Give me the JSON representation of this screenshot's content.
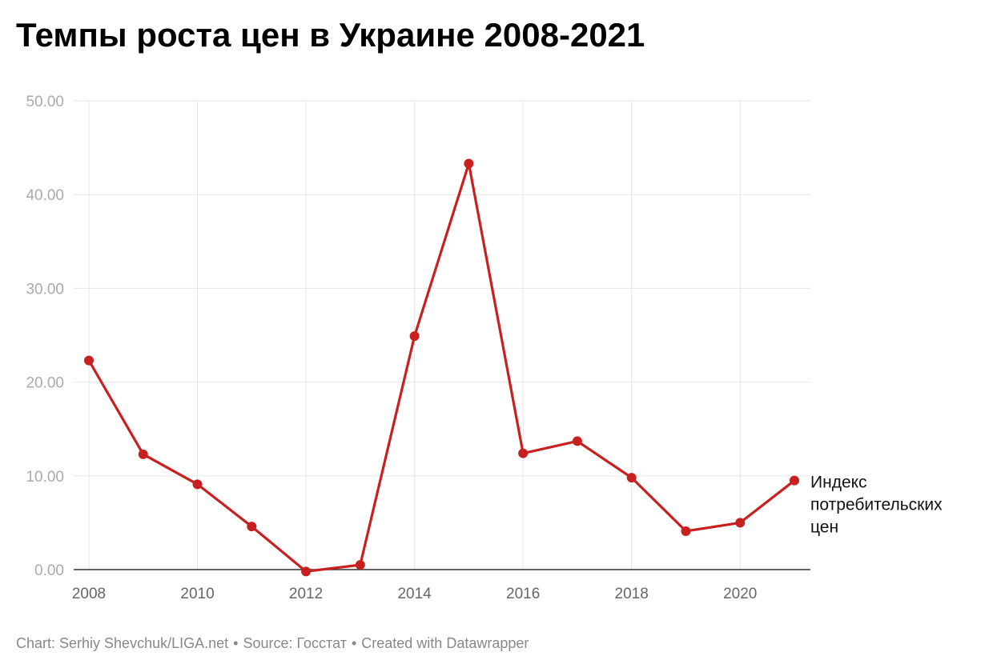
{
  "title": "Темпы роста цен в Украине 2008-2021",
  "footer": {
    "chart_credit": "Chart: Serhiy Shevchuk/LIGA.net",
    "separator": "•",
    "source": "Source: Госстат",
    "created_with": "Created with Datawrapper"
  },
  "colors": {
    "line": "#c8201f",
    "grid": "#e5e5e5",
    "axis": "#333333",
    "y_tick_text": "#aaaaaa",
    "x_tick_text": "#666666"
  },
  "chart_data": {
    "type": "line",
    "title": "Темпы роста цен в Украине 2008-2021",
    "xlabel": "",
    "ylabel": "",
    "x": [
      2008,
      2009,
      2010,
      2011,
      2012,
      2013,
      2014,
      2015,
      2016,
      2017,
      2018,
      2019,
      2020,
      2021
    ],
    "series": [
      {
        "name": "Индекс потребительских цен",
        "name_lines": [
          "Индекс",
          "потребительских",
          "цен"
        ],
        "values": [
          22.3,
          12.3,
          9.1,
          4.6,
          -0.2,
          0.5,
          24.9,
          43.3,
          12.4,
          13.7,
          9.8,
          4.1,
          5.0,
          9.5
        ]
      }
    ],
    "xlim": [
      2008,
      2021
    ],
    "ylim": [
      0,
      50
    ],
    "x_ticks": [
      2008,
      2010,
      2012,
      2014,
      2016,
      2018,
      2020
    ],
    "y_ticks": [
      0,
      10,
      20,
      30,
      40,
      50
    ],
    "y_tick_labels": [
      "0.00",
      "10.00",
      "20.00",
      "30.00",
      "40.00",
      "50.00"
    ],
    "grid": true,
    "legend": "inline-right-of-last-point"
  }
}
